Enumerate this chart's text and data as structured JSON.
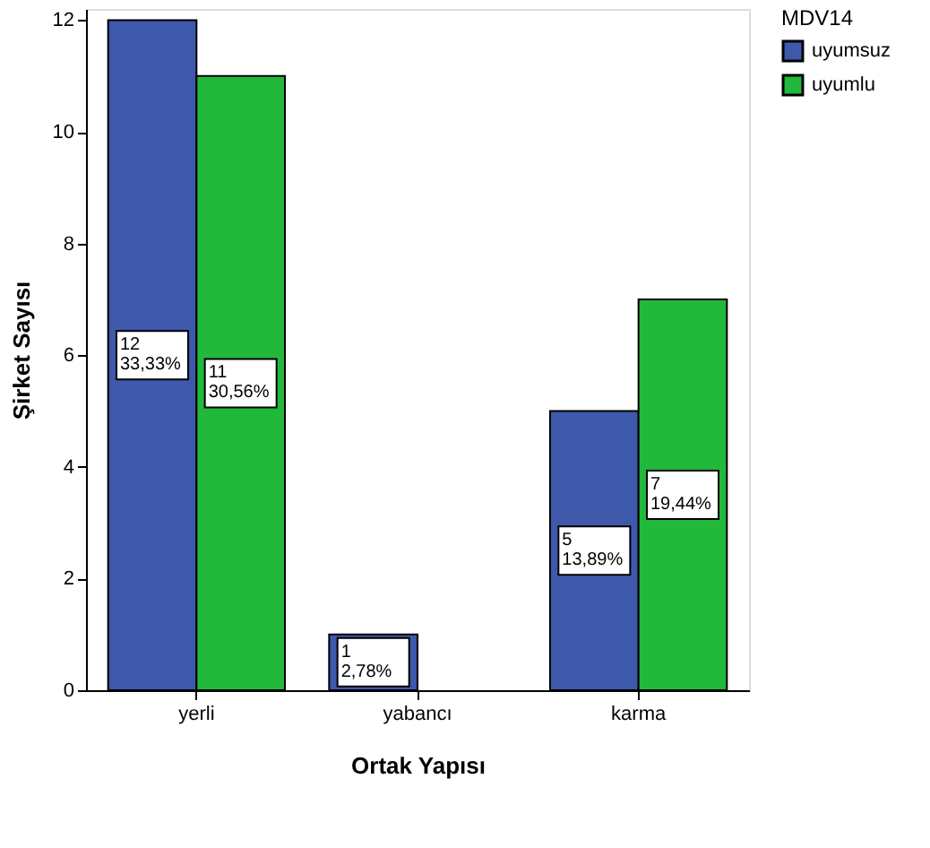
{
  "chart_data": {
    "type": "bar",
    "xlabel": "Ortak Yapısı",
    "ylabel": "Şirket Sayısı",
    "legend_title": "MDV14",
    "legend": "top right",
    "grid": false,
    "categories": [
      "yerli",
      "yabancı",
      "karma"
    ],
    "ylim": [
      0,
      12.2
    ],
    "yticks": [
      0,
      2,
      4,
      6,
      8,
      10,
      12
    ],
    "series": [
      {
        "name": "uyumsuz",
        "color": "#3e58ac",
        "values": [
          12,
          1,
          5
        ],
        "value_labels": [
          "12\n33,33%",
          "1\n2,78%",
          "5\n13,89%"
        ]
      },
      {
        "name": "uyumlu",
        "color": "#22b83c",
        "values": [
          11,
          null,
          7
        ],
        "value_labels": [
          "11\n30,56%",
          null,
          "7\n19,44%"
        ]
      }
    ]
  }
}
